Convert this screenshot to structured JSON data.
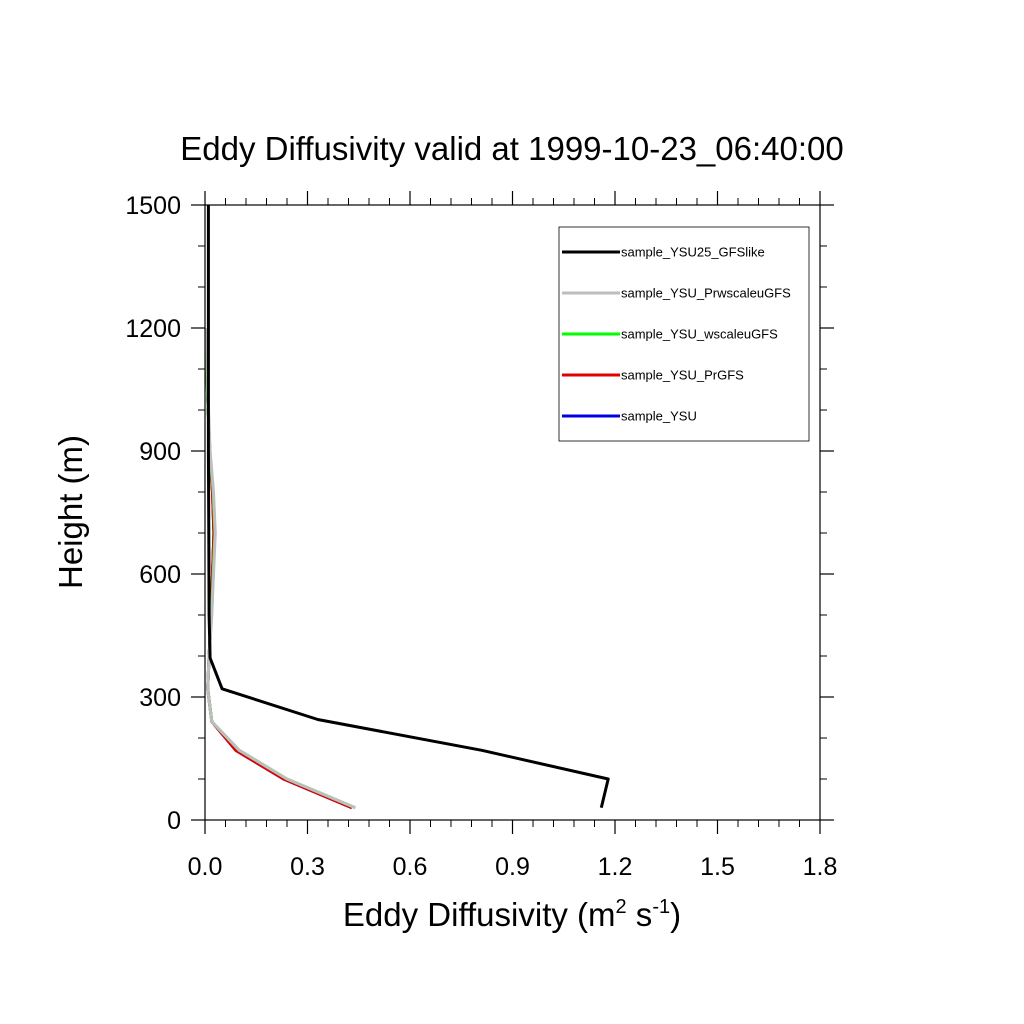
{
  "chart_data": {
    "type": "line",
    "title": "Eddy Diffusivity valid at 1999-10-23_06:40:00",
    "xlabel": {
      "base": "Eddy Diffusivity (m",
      "sup1": "2",
      "mid": " s",
      "sup2": "-1",
      "end": ")"
    },
    "ylabel": "Height (m)",
    "xlim": [
      0,
      1.8
    ],
    "ylim": [
      0,
      1500
    ],
    "xticks": [
      0.0,
      0.3,
      0.6,
      0.9,
      1.2,
      1.5,
      1.8
    ],
    "xtick_labels": [
      "0.0",
      "0.3",
      "0.6",
      "0.9",
      "1.2",
      "1.5",
      "1.8"
    ],
    "yticks": [
      0,
      300,
      600,
      900,
      1200,
      1500
    ],
    "ytick_labels": [
      "0",
      "300",
      "600",
      "900",
      "1200",
      "1500"
    ],
    "legend_position": "top-right",
    "series": [
      {
        "name": "sample_YSU25_GFSlike",
        "color": "#000000",
        "x": [
          1.16,
          1.18,
          0.81,
          0.33,
          0.05,
          0.015,
          0.012,
          0.011,
          0.01,
          0.01,
          0.01
        ],
        "y": [
          30,
          100,
          170,
          245,
          320,
          395,
          500,
          700,
          900,
          1200,
          1500
        ]
      },
      {
        "name": "sample_YSU_PrwscaleuGFS",
        "color": "#bebebe",
        "x": [
          0.44,
          0.24,
          0.1,
          0.02,
          0.008,
          0.012,
          0.02,
          0.025,
          0.03,
          0.025,
          0.015,
          0.008,
          0.005
        ],
        "y": [
          30,
          100,
          170,
          240,
          320,
          400,
          500,
          600,
          700,
          800,
          900,
          1050,
          1200
        ]
      },
      {
        "name": "sample_YSU_wscaleuGFS",
        "color": "#00ff00",
        "x": [
          0.44,
          0.24,
          0.1,
          0.02,
          0.008,
          0.012,
          0.019,
          0.024,
          0.029,
          0.024,
          0.014,
          0.007,
          0.004
        ],
        "y": [
          30,
          100,
          170,
          240,
          320,
          400,
          500,
          600,
          700,
          800,
          900,
          1050,
          1180
        ]
      },
      {
        "name": "sample_YSU_PrGFS",
        "color": "#e00000",
        "x": [
          0.43,
          0.23,
          0.09,
          0.02,
          0.008,
          0.012,
          0.018,
          0.022,
          0.026,
          0.022,
          0.014,
          0.007,
          0.004
        ],
        "y": [
          30,
          100,
          170,
          240,
          320,
          400,
          500,
          600,
          700,
          800,
          900,
          1050,
          1120
        ]
      },
      {
        "name": "sample_YSU",
        "color": "#0000e0",
        "x": [
          0.43,
          0.23,
          0.09,
          0.02,
          0.008,
          0.012,
          0.018,
          0.022,
          0.026,
          0.022,
          0.014,
          0.007
        ],
        "y": [
          30,
          100,
          170,
          240,
          320,
          400,
          500,
          600,
          700,
          800,
          900,
          1050
        ]
      }
    ]
  }
}
